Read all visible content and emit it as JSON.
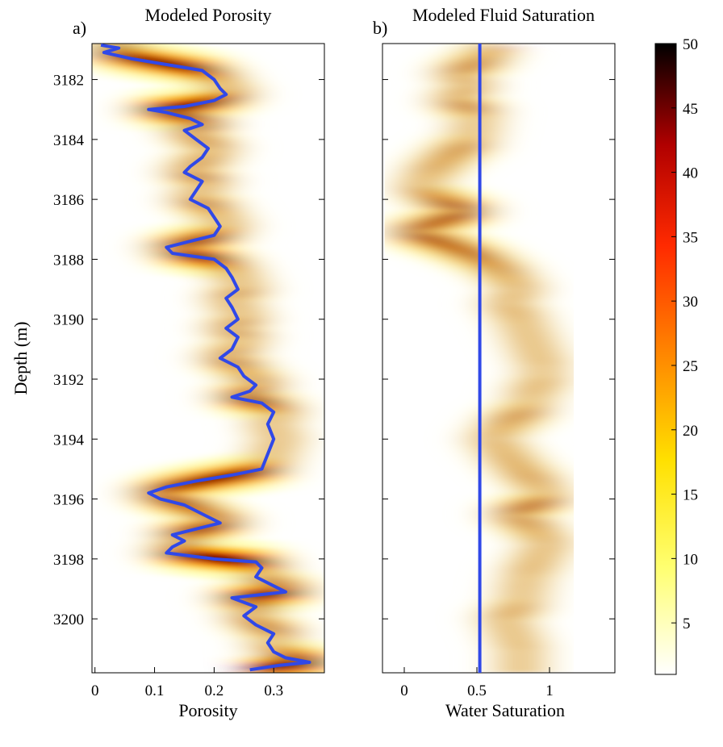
{
  "panels": [
    {
      "letter": "a)",
      "title": "Modeled Porosity"
    },
    {
      "letter": "b)",
      "title": "Modeled Fluid Saturation"
    }
  ],
  "colorbar": {
    "colormap": "hot-reversed",
    "range": [
      1,
      50
    ],
    "ticks": [
      5,
      10,
      15,
      20,
      25,
      30,
      35,
      40,
      45,
      50
    ]
  },
  "chart_data": [
    {
      "type": "heatmap",
      "title": "Modeled Porosity",
      "xlabel": "Porosity",
      "ylabel": "Depth (m)",
      "xlim": [
        -0.005,
        0.385
      ],
      "ylim": [
        3180.8,
        3201.8
      ],
      "y_reversed": true,
      "xticks": [
        "0",
        "0.1",
        "0.2",
        "0.3"
      ],
      "xtick_values": [
        0,
        0.1,
        0.2,
        0.3
      ],
      "yticks": [
        "3182",
        "3184",
        "3186",
        "3188",
        "3190",
        "3192",
        "3194",
        "3196",
        "3198",
        "3200"
      ],
      "ytick_values": [
        3182,
        3184,
        3186,
        3188,
        3190,
        3192,
        3194,
        3196,
        3198,
        3200
      ],
      "series": [
        {
          "type": "line",
          "color": "#3048e8",
          "depth": [
            3180.85,
            3180.95,
            3181.1,
            3181.3,
            3181.5,
            3181.7,
            3182.0,
            3182.3,
            3182.5,
            3182.7,
            3182.9,
            3183.0,
            3183.1,
            3183.3,
            3183.5,
            3183.7,
            3184.0,
            3184.3,
            3184.6,
            3184.9,
            3185.1,
            3185.4,
            3185.7,
            3186.0,
            3186.3,
            3186.6,
            3186.9,
            3187.2,
            3187.4,
            3187.6,
            3187.8,
            3188.0,
            3188.3,
            3188.6,
            3189.0,
            3189.3,
            3189.6,
            3190.0,
            3190.3,
            3190.6,
            3191.0,
            3191.3,
            3191.6,
            3191.9,
            3192.2,
            3192.4,
            3192.6,
            3192.8,
            3193.1,
            3193.5,
            3194.0,
            3194.5,
            3195.0,
            3195.2,
            3195.4,
            3195.6,
            3195.8,
            3196.0,
            3196.2,
            3196.5,
            3196.8,
            3197.0,
            3197.2,
            3197.4,
            3197.6,
            3197.8,
            3198.0,
            3198.1,
            3198.3,
            3198.6,
            3198.9,
            3199.1,
            3199.3,
            3199.6,
            3199.9,
            3200.2,
            3200.5,
            3200.8,
            3201.1,
            3201.3,
            3201.45,
            3201.55,
            3201.7
          ],
          "porosity": [
            0.01,
            0.04,
            0.015,
            0.06,
            0.12,
            0.18,
            0.2,
            0.21,
            0.22,
            0.2,
            0.15,
            0.09,
            0.12,
            0.16,
            0.18,
            0.15,
            0.17,
            0.19,
            0.18,
            0.16,
            0.15,
            0.18,
            0.17,
            0.16,
            0.19,
            0.2,
            0.21,
            0.2,
            0.16,
            0.12,
            0.13,
            0.2,
            0.22,
            0.23,
            0.24,
            0.22,
            0.23,
            0.24,
            0.22,
            0.24,
            0.23,
            0.21,
            0.24,
            0.25,
            0.27,
            0.26,
            0.23,
            0.28,
            0.3,
            0.29,
            0.3,
            0.29,
            0.28,
            0.23,
            0.17,
            0.12,
            0.09,
            0.11,
            0.15,
            0.18,
            0.21,
            0.17,
            0.13,
            0.15,
            0.13,
            0.12,
            0.2,
            0.27,
            0.28,
            0.27,
            0.3,
            0.32,
            0.23,
            0.27,
            0.25,
            0.27,
            0.3,
            0.29,
            0.3,
            0.32,
            0.36,
            0.31,
            0.26
          ]
        }
      ]
    },
    {
      "type": "heatmap",
      "title": "Modeled Fluid Saturation",
      "xlabel": "Water Saturation",
      "ylabel": "",
      "xlim": [
        -0.15,
        1.45
      ],
      "ylim": [
        3180.8,
        3201.8
      ],
      "y_reversed": true,
      "xticks": [
        "0",
        "0.5",
        "1"
      ],
      "xtick_values": [
        0,
        0.5,
        1
      ],
      "series": [
        {
          "type": "line",
          "color": "#3048e8",
          "depth": [
            3180.8,
            3201.8
          ],
          "saturation": [
            0.52,
            0.52
          ]
        }
      ]
    }
  ]
}
